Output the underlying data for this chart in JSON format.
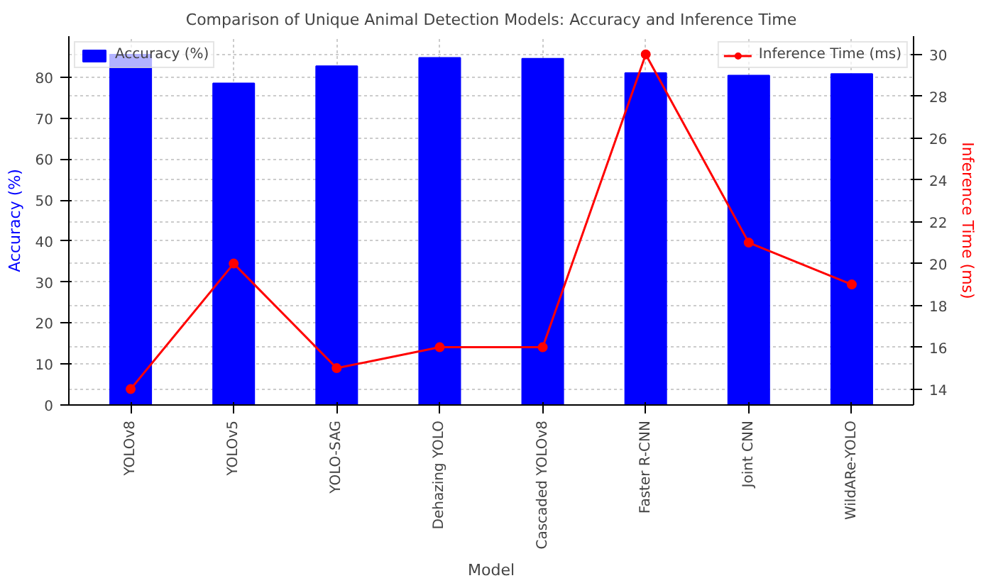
{
  "chart_data": {
    "type": "bar",
    "title": "Comparison of Unique Animal Detection Models: Accuracy and Inference Time",
    "xlabel": "Model",
    "ylabel": "Accuracy (%)",
    "y2label": "Inference Time (ms)",
    "categories": [
      "YOLOv8",
      "YOLOv5",
      "YOLO-SAG",
      "Dehazing YOLO",
      "Cascaded YOLOv8",
      "Faster R-CNN",
      "Joint CNN",
      "WildARe-YOLO"
    ],
    "series": [
      {
        "name": "Accuracy (%)",
        "color": "#0000ff",
        "values": [
          85.5,
          78.5,
          82.7,
          84.7,
          84.5,
          81,
          80.4,
          80.8
        ]
      },
      {
        "name": "Inference Time (ms)",
        "type": "line",
        "axis": "y2",
        "color": "#ff0000",
        "marker": "circle",
        "line_style": "solid",
        "values": [
          14,
          20,
          15,
          16,
          16,
          30,
          21,
          19
        ]
      }
    ],
    "ylim": [
      0,
      90
    ],
    "yticks": [
      0,
      10,
      20,
      30,
      40,
      50,
      60,
      70,
      80
    ],
    "y2lim": [
      13.24,
      30.87
    ],
    "y2ticks": [
      14,
      16,
      18,
      20,
      22,
      24,
      26,
      28,
      30
    ],
    "grid": true,
    "legend": "top"
  }
}
